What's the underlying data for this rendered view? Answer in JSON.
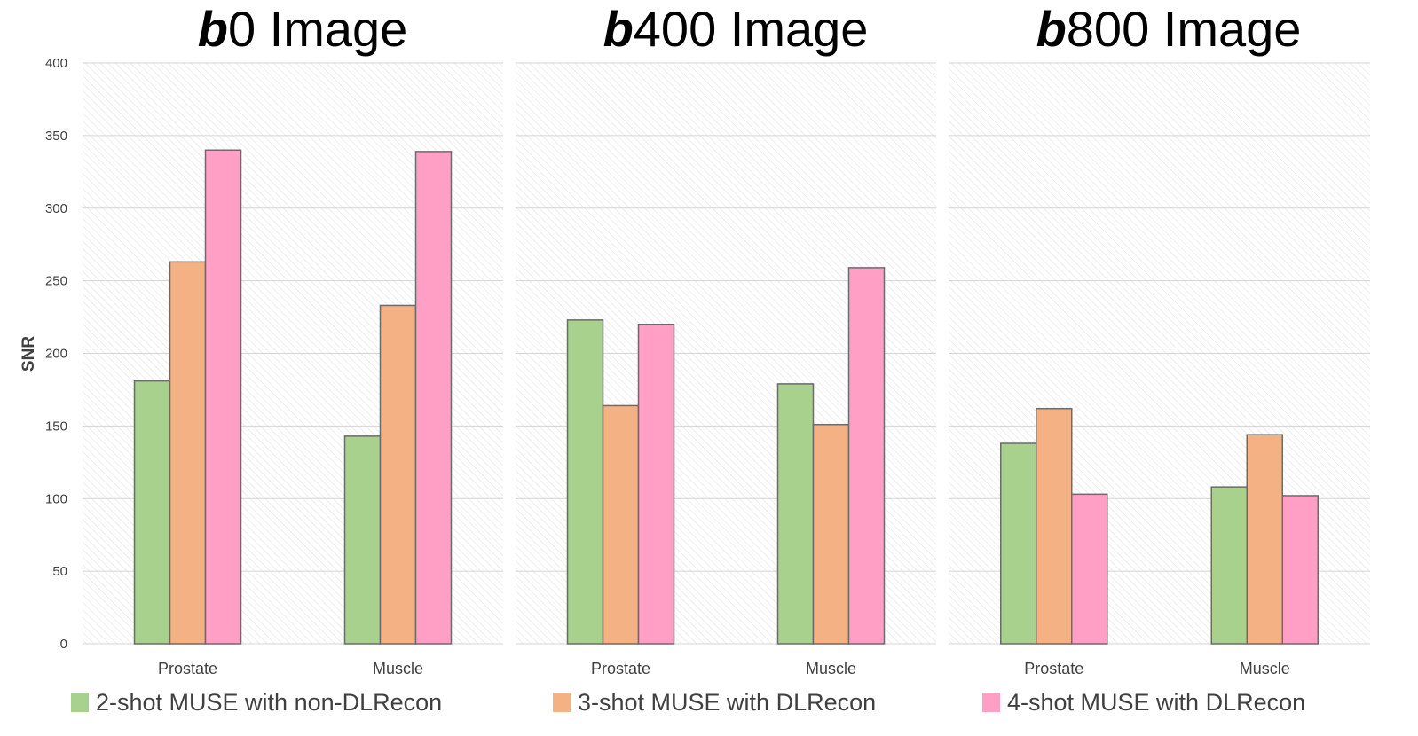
{
  "chart_data": [
    {
      "type": "bar",
      "title_bold": "b",
      "title_rest": "0 Image",
      "ylabel": "SNR",
      "ylim": [
        0,
        400
      ],
      "yticks": [
        0,
        50,
        100,
        150,
        200,
        250,
        300,
        350,
        400
      ],
      "categories": [
        "Prostate",
        "Muscle"
      ],
      "series": [
        {
          "name": "2-shot MUSE with non-DLRecon",
          "values": [
            181,
            143
          ]
        },
        {
          "name": "3-shot MUSE with DLRecon",
          "values": [
            263,
            233
          ]
        },
        {
          "name": "4-shot MUSE with DLRecon",
          "values": [
            340,
            339
          ]
        }
      ]
    },
    {
      "type": "bar",
      "title_bold": "b",
      "title_rest": "400 Image",
      "ylim": [
        0,
        400
      ],
      "categories": [
        "Prostate",
        "Muscle"
      ],
      "series": [
        {
          "name": "2-shot MUSE with non-DLRecon",
          "values": [
            223,
            179
          ]
        },
        {
          "name": "3-shot MUSE with DLRecon",
          "values": [
            164,
            151
          ]
        },
        {
          "name": "4-shot MUSE with DLRecon",
          "values": [
            220,
            259
          ]
        }
      ]
    },
    {
      "type": "bar",
      "title_bold": "b",
      "title_rest": "800 Image",
      "ylim": [
        0,
        400
      ],
      "categories": [
        "Prostate",
        "Muscle"
      ],
      "series": [
        {
          "name": "2-shot MUSE with non-DLRecon",
          "values": [
            138,
            108
          ]
        },
        {
          "name": "3-shot MUSE with DLRecon",
          "values": [
            162,
            144
          ]
        },
        {
          "name": "4-shot MUSE with DLRecon",
          "values": [
            103,
            102
          ]
        }
      ]
    }
  ],
  "legend": [
    {
      "label": "2-shot MUSE with non-DLRecon",
      "color": "#a9d18e"
    },
    {
      "label": "3-shot MUSE with DLRecon",
      "color": "#f4b183"
    },
    {
      "label": "4-shot MUSE with DLRecon",
      "color": "#ff9fc6"
    }
  ],
  "colors": [
    "#a9d18e",
    "#f4b183",
    "#ff9fc6"
  ]
}
